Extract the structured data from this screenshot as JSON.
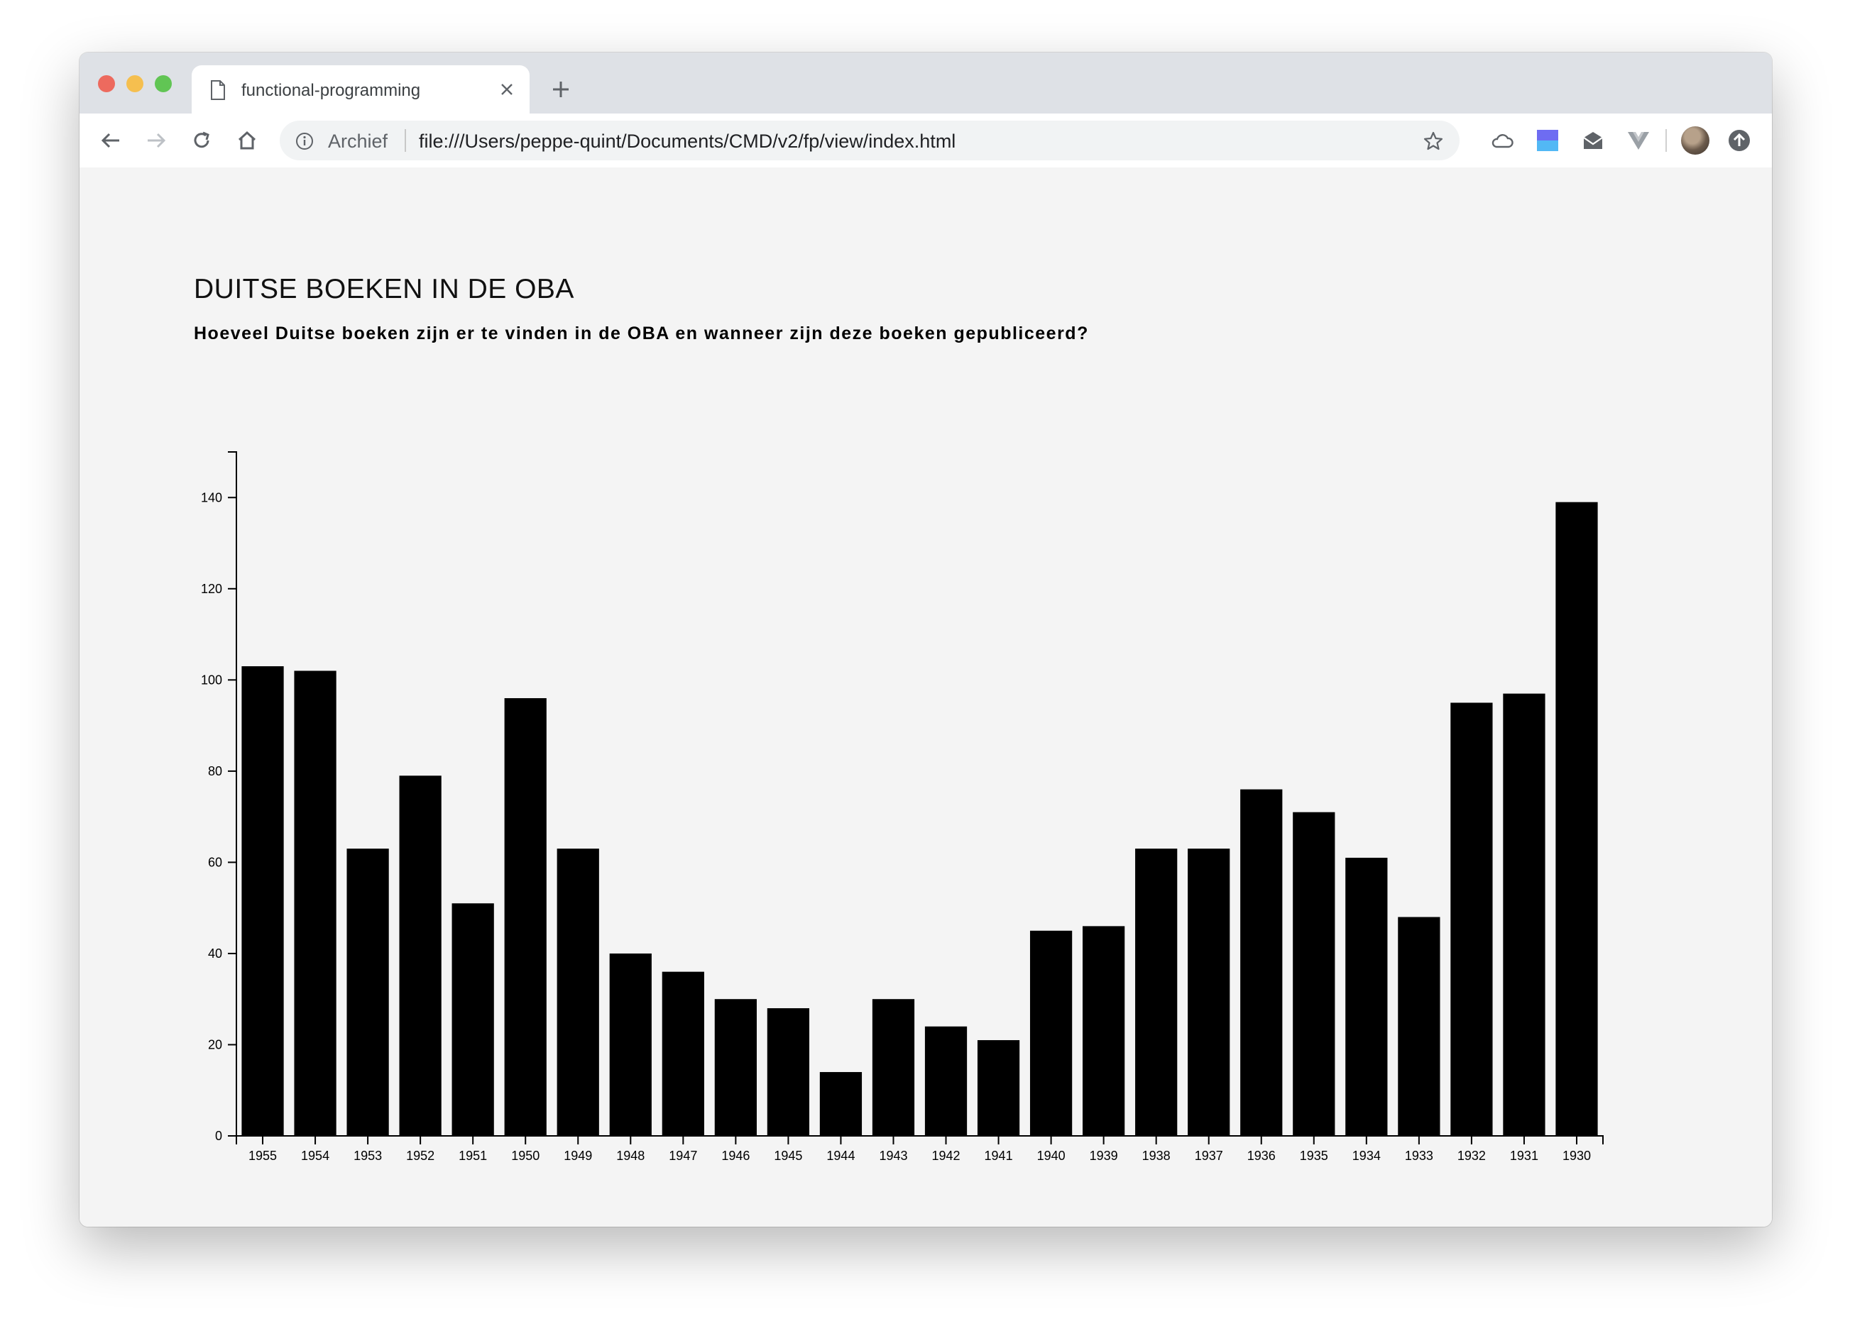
{
  "browser": {
    "tab_title": "functional-programming",
    "security_label": "Archief",
    "url": "file:///Users/peppe-quint/Documents/CMD/v2/fp/view/index.html"
  },
  "page": {
    "title": "DUITSE BOEKEN IN DE OBA",
    "subtitle": "Hoeveel Duitse boeken zijn er te vinden in de OBA en wanneer zijn deze boeken gepubliceerd?"
  },
  "chart_data": {
    "type": "bar",
    "categories": [
      "1955",
      "1954",
      "1953",
      "1952",
      "1951",
      "1950",
      "1949",
      "1948",
      "1947",
      "1946",
      "1945",
      "1944",
      "1943",
      "1942",
      "1941",
      "1940",
      "1939",
      "1938",
      "1937",
      "1936",
      "1935",
      "1934",
      "1933",
      "1932",
      "1931",
      "1930"
    ],
    "values": [
      103,
      102,
      63,
      79,
      51,
      96,
      63,
      40,
      36,
      30,
      28,
      14,
      30,
      24,
      21,
      45,
      46,
      63,
      63,
      76,
      71,
      61,
      48,
      95,
      97,
      139
    ],
    "yticks": [
      0,
      20,
      40,
      60,
      80,
      100,
      120,
      140
    ],
    "ylim": [
      0,
      150
    ],
    "title": "",
    "xlabel": "",
    "ylabel": "",
    "grid": false,
    "bar_color": "#000000"
  }
}
